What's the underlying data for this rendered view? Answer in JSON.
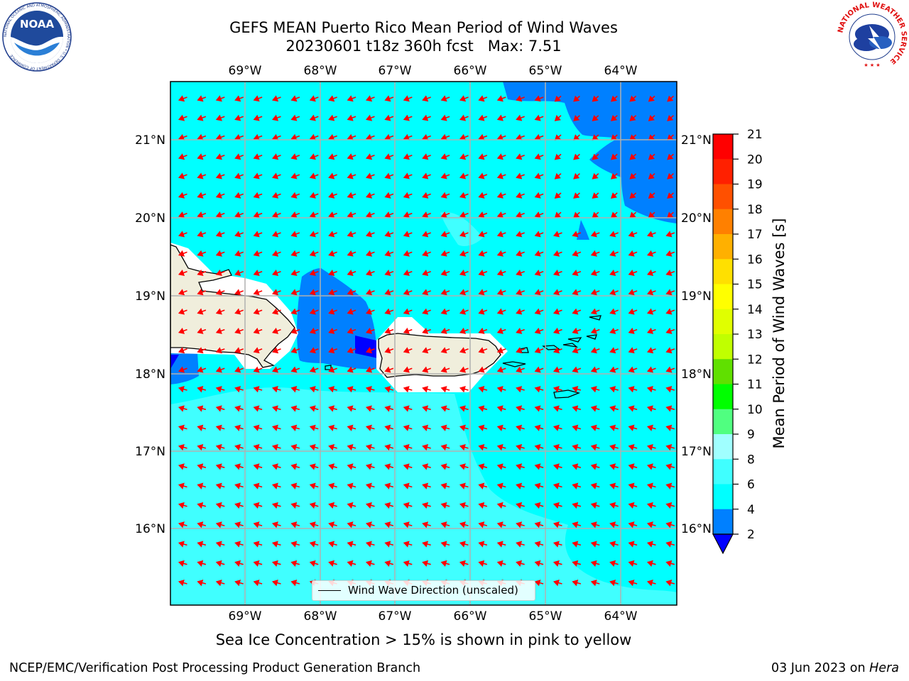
{
  "title": {
    "line1": "GEFS MEAN Puerto Rico Mean Period of Wind Waves",
    "line2": "20230601 t18z 360h fcst   Max: 7.51"
  },
  "map": {
    "lon_labels": [
      "69°W",
      "68°W",
      "67°W",
      "66°W",
      "65°W",
      "64°W"
    ],
    "lat_labels": [
      "21°N",
      "20°N",
      "19°N",
      "18°N",
      "17°N",
      "16°N"
    ],
    "ocean_colors": {
      "lt2": "#0000ff",
      "2to4": "#0080ff",
      "4to6": "#00ffff",
      "6to8": "#40ffff",
      "8to9": "#a0ffff"
    },
    "land_color": "#f0eedc",
    "arrow_color": "#ff0000",
    "legend_label": "Wind Wave Direction (unscaled)"
  },
  "colorbar": {
    "label": "Mean Period of Wind Waves [s]",
    "ticks": [
      "21",
      "20",
      "19",
      "18",
      "17",
      "16",
      "15",
      "14",
      "13",
      "12",
      "11",
      "10",
      "9",
      "8",
      "6",
      "4",
      "2"
    ],
    "colors": [
      "#ff0000",
      "#ff2000",
      "#ff5000",
      "#ff8000",
      "#ffb000",
      "#ffe000",
      "#ffff00",
      "#e0ff00",
      "#c0ff00",
      "#60e000",
      "#00ff00",
      "#50ff80",
      "#a0ffff",
      "#40ffff",
      "#00ffff",
      "#0080ff"
    ],
    "under_color": "#0000ff"
  },
  "subcaption": "Sea Ice Concentration > 15% is shown in pink to yellow",
  "footer": {
    "left": "NCEP/EMC/Verification Post Processing Product Generation Branch",
    "right_date": "03 Jun 2023 on ",
    "right_host": "Hera"
  },
  "logos": {
    "noaa": "NOAA",
    "noaa_ring": "NATIONAL OCEANIC AND ATMOSPHERIC ADMINISTRATION • U.S. DEPARTMENT OF COMMERCE",
    "nws_ring": "NATIONAL WEATHER SERVICE"
  }
}
